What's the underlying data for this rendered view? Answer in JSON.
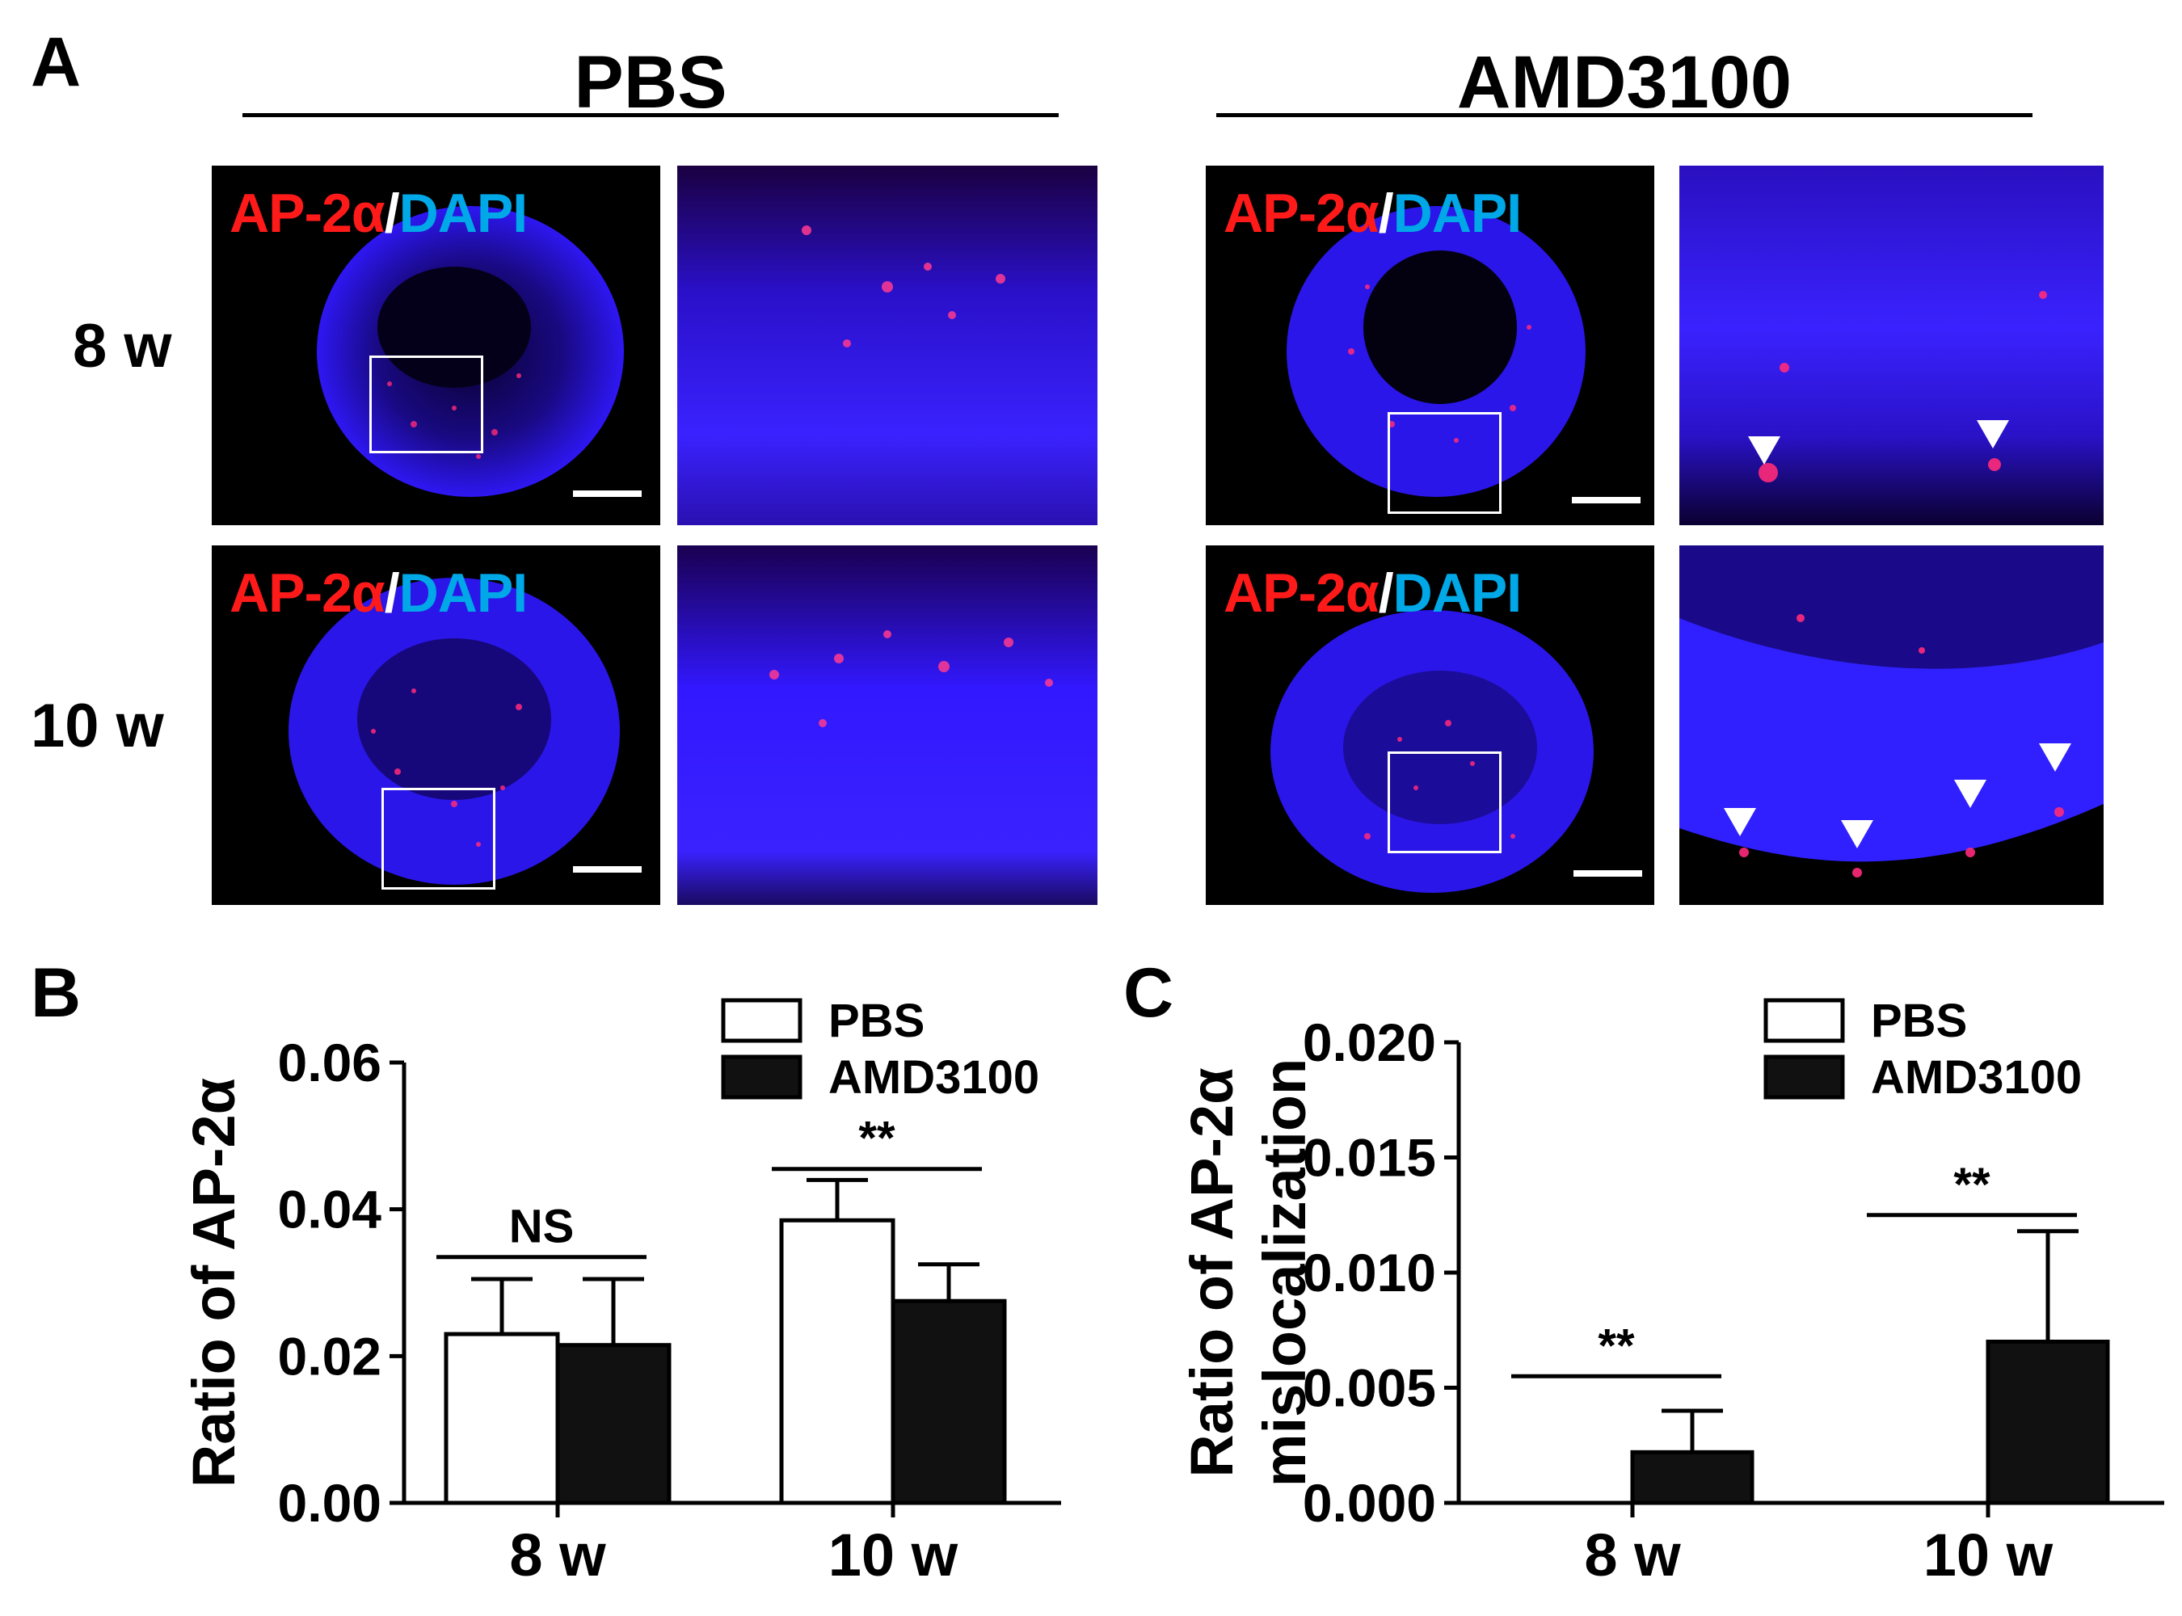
{
  "figure": {
    "panel_a": {
      "letter": "A",
      "groups": [
        {
          "title": "PBS"
        },
        {
          "title": "AMD3100"
        }
      ],
      "rows": [
        {
          "label": "8 w"
        },
        {
          "label": "10 w"
        }
      ],
      "stain": {
        "red": "AP-2α",
        "slash": "/",
        "blue": "DAPI"
      },
      "colors": {
        "red_channel": "#ff1a1a",
        "blue_channel": "#2a00ff",
        "dapi_text": "#00a8e8"
      }
    },
    "panel_b": {
      "letter": "B"
    },
    "panel_c": {
      "letter": "C"
    }
  },
  "chart_data": [
    {
      "panel": "B",
      "type": "bar",
      "categories": [
        "8 w",
        "10 w"
      ],
      "series": [
        {
          "name": "PBS",
          "values": [
            0.023,
            0.0385
          ],
          "errors": [
            0.0075,
            0.0055
          ],
          "color": "#ffffff"
        },
        {
          "name": "AMD3100",
          "values": [
            0.0215,
            0.0275
          ],
          "errors": [
            0.009,
            0.005
          ],
          "color": "#111111"
        }
      ],
      "ylabel": "Ratio of AP-2α",
      "ylabel2": "",
      "ylim": [
        0,
        0.06
      ],
      "yticks": [
        "0.00",
        "0.02",
        "0.04",
        "0.06"
      ],
      "ytick_values": [
        0,
        0.02,
        0.04,
        0.06
      ],
      "significance": [
        {
          "category": 0,
          "label": "NS",
          "y": 0.0335
        },
        {
          "category": 1,
          "label": "**",
          "y": 0.0455
        }
      ],
      "legend": {
        "position": "top-right",
        "entries": [
          "PBS",
          "AMD3100"
        ]
      }
    },
    {
      "panel": "C",
      "type": "bar",
      "categories": [
        "8 w",
        "10 w"
      ],
      "series": [
        {
          "name": "PBS",
          "values": [
            0,
            0
          ],
          "errors": [
            0,
            0
          ],
          "color": "#ffffff"
        },
        {
          "name": "AMD3100",
          "values": [
            0.0022,
            0.007
          ],
          "errors": [
            0.0018,
            0.0048
          ],
          "color": "#111111"
        }
      ],
      "ylabel": "Ratio of AP-2α",
      "ylabel2": "mislocalization",
      "ylim": [
        0,
        0.02
      ],
      "yticks": [
        "0.000",
        "0.005",
        "0.010",
        "0.015",
        "0.020"
      ],
      "ytick_values": [
        0,
        0.005,
        0.01,
        0.015,
        0.02
      ],
      "significance": [
        {
          "category": 0,
          "label": "**",
          "y": 0.0055
        },
        {
          "category": 1,
          "label": "**",
          "y": 0.0125
        }
      ],
      "legend": {
        "position": "top-right",
        "entries": [
          "PBS",
          "AMD3100"
        ]
      }
    }
  ]
}
